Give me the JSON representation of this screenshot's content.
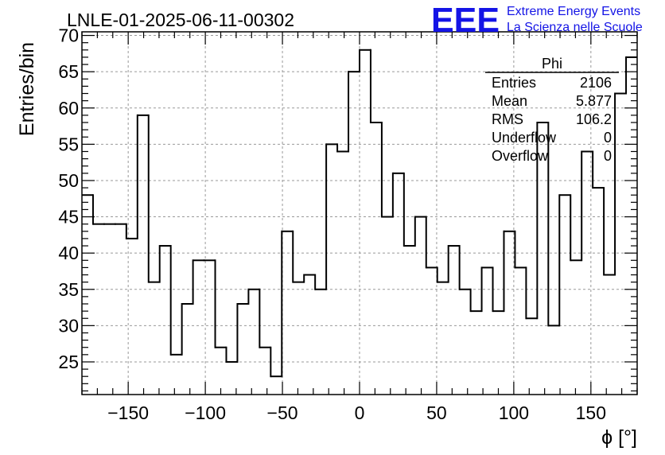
{
  "chart_data": {
    "type": "bar",
    "style": "step-histogram",
    "title": "LNLE-01-2025-06-11-00302",
    "xlabel": "ϕ [°]",
    "ylabel": "Entries/bin",
    "xlim": [
      -180,
      180
    ],
    "ylim": [
      20.5,
      70.5
    ],
    "xticks": [
      -150,
      -100,
      -50,
      0,
      50,
      100,
      150
    ],
    "xtick_labels": [
      "−150",
      "−100",
      "−50",
      "0",
      "50",
      "100",
      "150"
    ],
    "yticks": [
      25,
      30,
      35,
      40,
      45,
      50,
      55,
      60,
      65,
      70
    ],
    "ytick_labels": [
      "25",
      "30",
      "35",
      "40",
      "45",
      "50",
      "55",
      "60",
      "65",
      "70"
    ],
    "grid": true,
    "bin_width": 7.2,
    "bin_edges_start": -180,
    "values": [
      48,
      44,
      44,
      44,
      42,
      59,
      36,
      41,
      26,
      33,
      39,
      39,
      27,
      25,
      33,
      35,
      27,
      23,
      43,
      36,
      37,
      35,
      55,
      54,
      65,
      68,
      58,
      45,
      51,
      41,
      45,
      38,
      36,
      41,
      35,
      32,
      38,
      32,
      43,
      38,
      31,
      58,
      30,
      48,
      39,
      54,
      49,
      37,
      62,
      67
    ],
    "line_color": "#000000",
    "stats_box": {
      "name": "Phi",
      "placement": "top-right",
      "rows": [
        {
          "label": "Entries",
          "value": "2106"
        },
        {
          "label": "Mean",
          "value": "5.877"
        },
        {
          "label": "RMS",
          "value": "106.2"
        },
        {
          "label": "Underflow",
          "value": "0"
        },
        {
          "label": "Overflow",
          "value": "0"
        }
      ]
    }
  },
  "logo": {
    "mark": "EEE",
    "line1": "Extreme Energy Events",
    "line2": "La Scienza nelle Scuole",
    "color": "#1414e6"
  }
}
